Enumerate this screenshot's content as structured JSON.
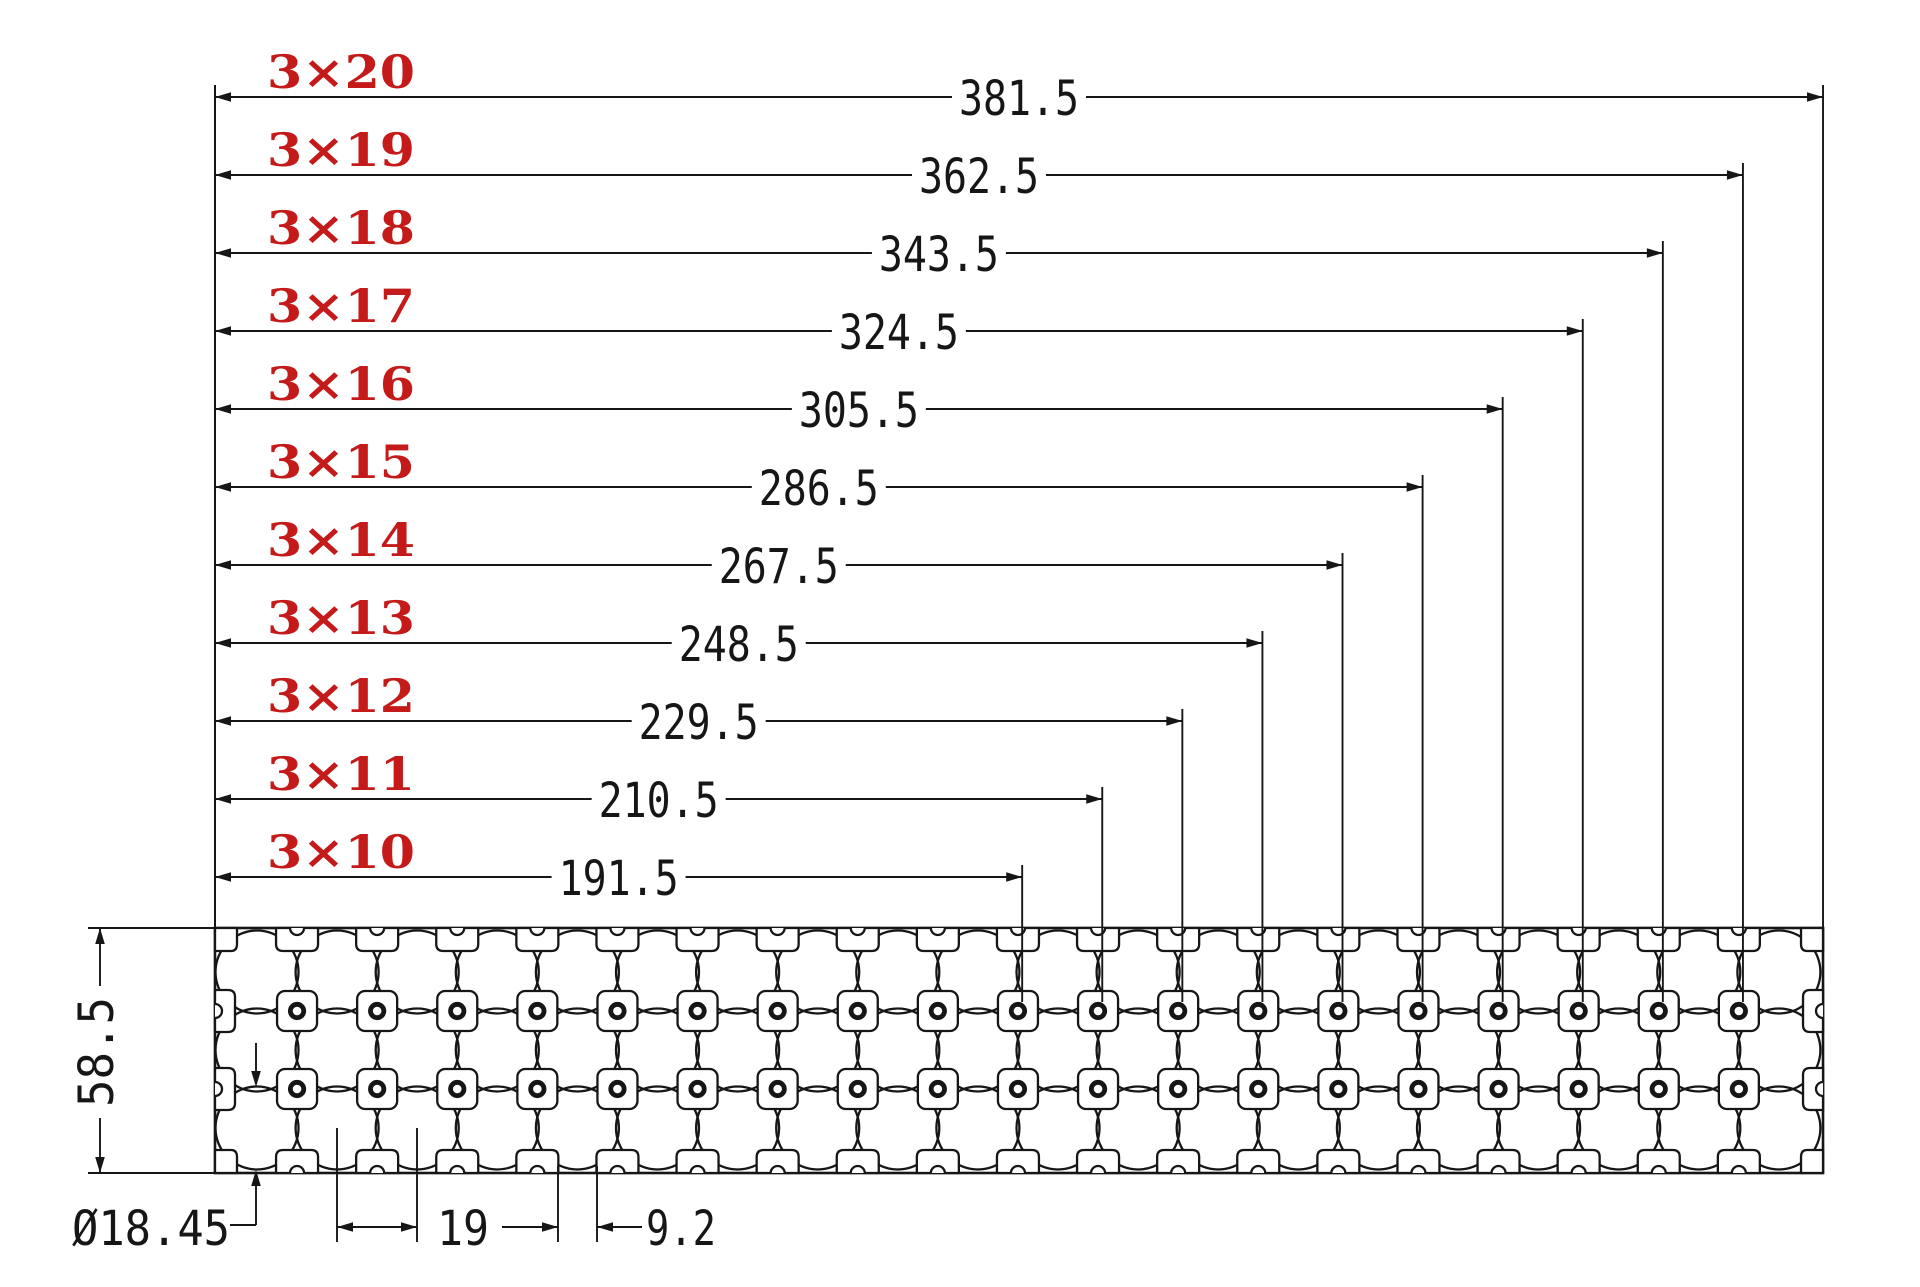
{
  "colors": {
    "line": "#161616",
    "accent": "#c41a1a",
    "background": "#ffffff"
  },
  "config_dims": [
    {
      "label": "3×20",
      "value": "381.5"
    },
    {
      "label": "3×19",
      "value": "362.5"
    },
    {
      "label": "3×18",
      "value": "343.5"
    },
    {
      "label": "3×17",
      "value": "324.5"
    },
    {
      "label": "3×16",
      "value": "305.5"
    },
    {
      "label": "3×15",
      "value": "286.5"
    },
    {
      "label": "3×14",
      "value": "267.5"
    },
    {
      "label": "3×13",
      "value": "248.5"
    },
    {
      "label": "3×12",
      "value": "229.5"
    },
    {
      "label": "3×11",
      "value": "210.5"
    },
    {
      "label": "3×10",
      "value": "191.5"
    }
  ],
  "detail_dims": {
    "height": "58.5",
    "hole_diameter": "Ø18.45",
    "cell_pitch": "19",
    "web_width": "9.2"
  },
  "profile": {
    "rows": 3,
    "cols": 20
  }
}
